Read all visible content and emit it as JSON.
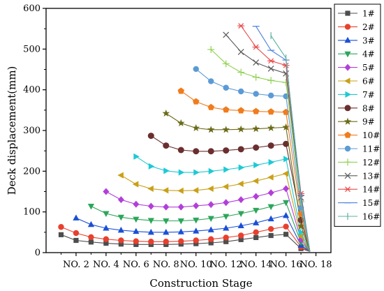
{
  "chart_data": {
    "type": "line",
    "xlabel": "Construction Stage",
    "ylabel": "Deck displacement(mm)",
    "xlim": [
      0,
      19
    ],
    "ylim": [
      0,
      600
    ],
    "xticks": [
      {
        "value": 2,
        "label": "NO. 2"
      },
      {
        "value": 4,
        "label": "NO. 4"
      },
      {
        "value": 6,
        "label": "NO. 6"
      },
      {
        "value": 8,
        "label": "NO. 8"
      },
      {
        "value": 10,
        "label": "NO. 10"
      },
      {
        "value": 12,
        "label": "NO. 12"
      },
      {
        "value": 14,
        "label": "NO. 14"
      },
      {
        "value": 16,
        "label": "NO. 16"
      },
      {
        "value": 18,
        "label": "NO. 18"
      }
    ],
    "yticks": [
      0,
      100,
      200,
      300,
      400,
      500,
      600
    ],
    "legend_position": "right",
    "series": [
      {
        "name": "1#",
        "color": "#4d4d4d",
        "marker": "square",
        "points": [
          [
            1,
            44
          ],
          [
            2,
            30
          ],
          [
            3,
            26
          ],
          [
            4,
            23
          ],
          [
            5,
            21
          ],
          [
            6,
            20
          ],
          [
            7,
            20
          ],
          [
            8,
            20
          ],
          [
            9,
            21
          ],
          [
            10,
            22
          ],
          [
            11,
            24
          ],
          [
            12,
            27
          ],
          [
            13,
            32
          ],
          [
            14,
            37
          ],
          [
            15,
            42
          ],
          [
            16,
            45
          ],
          [
            17,
            10
          ],
          [
            17.6,
            3
          ]
        ]
      },
      {
        "name": "2#",
        "color": "#e8402e",
        "marker": "circle",
        "points": [
          [
            1,
            63
          ],
          [
            2,
            48
          ],
          [
            3,
            38
          ],
          [
            4,
            33
          ],
          [
            5,
            30
          ],
          [
            6,
            28
          ],
          [
            7,
            27
          ],
          [
            8,
            27
          ],
          [
            9,
            28
          ],
          [
            10,
            30
          ],
          [
            11,
            33
          ],
          [
            12,
            37
          ],
          [
            13,
            42
          ],
          [
            14,
            50
          ],
          [
            15,
            58
          ],
          [
            16,
            64
          ],
          [
            17,
            14
          ],
          [
            17.6,
            3
          ]
        ]
      },
      {
        "name": "3#",
        "color": "#1a4fd6",
        "marker": "triangle-up",
        "points": [
          [
            2,
            85
          ],
          [
            3,
            69
          ],
          [
            4,
            60
          ],
          [
            5,
            55
          ],
          [
            6,
            52
          ],
          [
            7,
            50
          ],
          [
            8,
            50
          ],
          [
            9,
            51
          ],
          [
            10,
            53
          ],
          [
            11,
            56
          ],
          [
            12,
            60
          ],
          [
            13,
            66
          ],
          [
            14,
            73
          ],
          [
            15,
            83
          ],
          [
            16,
            91
          ],
          [
            17,
            18
          ],
          [
            17.6,
            3
          ]
        ]
      },
      {
        "name": "4#",
        "color": "#2ca65a",
        "marker": "triangle-down",
        "points": [
          [
            3,
            114
          ],
          [
            4,
            96
          ],
          [
            5,
            87
          ],
          [
            6,
            82
          ],
          [
            7,
            79
          ],
          [
            8,
            78
          ],
          [
            9,
            78
          ],
          [
            10,
            80
          ],
          [
            11,
            84
          ],
          [
            12,
            89
          ],
          [
            13,
            96
          ],
          [
            14,
            104
          ],
          [
            15,
            113
          ],
          [
            16,
            123
          ],
          [
            17,
            25
          ],
          [
            17.6,
            3
          ]
        ]
      },
      {
        "name": "5#",
        "color": "#b23fd9",
        "marker": "diamond",
        "points": [
          [
            4,
            150
          ],
          [
            5,
            130
          ],
          [
            6,
            119
          ],
          [
            7,
            114
          ],
          [
            8,
            112
          ],
          [
            9,
            112
          ],
          [
            10,
            115
          ],
          [
            11,
            118
          ],
          [
            12,
            123
          ],
          [
            13,
            130
          ],
          [
            14,
            138
          ],
          [
            15,
            147
          ],
          [
            16,
            157
          ],
          [
            17,
            32
          ],
          [
            17.6,
            3
          ]
        ]
      },
      {
        "name": "6#",
        "color": "#c9a019",
        "marker": "triangle-left",
        "points": [
          [
            5,
            190
          ],
          [
            6,
            168
          ],
          [
            7,
            157
          ],
          [
            8,
            153
          ],
          [
            9,
            152
          ],
          [
            10,
            153
          ],
          [
            11,
            157
          ],
          [
            12,
            162
          ],
          [
            13,
            169
          ],
          [
            14,
            176
          ],
          [
            15,
            185
          ],
          [
            16,
            194
          ],
          [
            17,
            40
          ],
          [
            17.6,
            3
          ]
        ]
      },
      {
        "name": "7#",
        "color": "#1ec9d3",
        "marker": "triangle-right",
        "points": [
          [
            6,
            236
          ],
          [
            7,
            212
          ],
          [
            8,
            201
          ],
          [
            9,
            197
          ],
          [
            10,
            197
          ],
          [
            11,
            200
          ],
          [
            12,
            204
          ],
          [
            13,
            209
          ],
          [
            14,
            215
          ],
          [
            15,
            222
          ],
          [
            16,
            230
          ],
          [
            17,
            50
          ],
          [
            17.6,
            3
          ]
        ]
      },
      {
        "name": "8#",
        "color": "#6b2e2e",
        "marker": "hexagon",
        "points": [
          [
            7,
            287
          ],
          [
            8,
            263
          ],
          [
            9,
            252
          ],
          [
            10,
            249
          ],
          [
            11,
            249
          ],
          [
            12,
            251
          ],
          [
            13,
            254
          ],
          [
            14,
            258
          ],
          [
            15,
            263
          ],
          [
            16,
            267
          ],
          [
            17,
            80
          ],
          [
            17.6,
            3
          ]
        ]
      },
      {
        "name": "9#",
        "color": "#6b6b1a",
        "marker": "star",
        "points": [
          [
            8,
            342
          ],
          [
            9,
            318
          ],
          [
            10,
            306
          ],
          [
            11,
            302
          ],
          [
            12,
            302
          ],
          [
            13,
            303
          ],
          [
            14,
            304
          ],
          [
            15,
            306
          ],
          [
            16,
            308
          ],
          [
            17,
            65
          ],
          [
            17.6,
            3
          ]
        ]
      },
      {
        "name": "10#",
        "color": "#f07c1e",
        "marker": "pentagon",
        "points": [
          [
            9,
            397
          ],
          [
            10,
            371
          ],
          [
            11,
            357
          ],
          [
            12,
            351
          ],
          [
            13,
            349
          ],
          [
            14,
            347
          ],
          [
            15,
            346
          ],
          [
            16,
            345
          ],
          [
            17,
            95
          ],
          [
            17.6,
            3
          ]
        ]
      },
      {
        "name": "11#",
        "color": "#5b9bd5",
        "marker": "filled-circle",
        "points": [
          [
            10,
            451
          ],
          [
            11,
            421
          ],
          [
            12,
            405
          ],
          [
            13,
            396
          ],
          [
            14,
            390
          ],
          [
            15,
            386
          ],
          [
            16,
            384
          ],
          [
            17,
            110
          ],
          [
            17.6,
            3
          ]
        ]
      },
      {
        "name": "12#",
        "color": "#8fd14f",
        "marker": "plus",
        "points": [
          [
            11,
            499
          ],
          [
            12,
            464
          ],
          [
            13,
            443
          ],
          [
            14,
            431
          ],
          [
            15,
            423
          ],
          [
            16,
            418
          ],
          [
            17,
            125
          ],
          [
            17.6,
            3
          ]
        ]
      },
      {
        "name": "13#",
        "color": "#5a5a5a",
        "marker": "x",
        "points": [
          [
            12,
            535
          ],
          [
            13,
            493
          ],
          [
            14,
            467
          ],
          [
            15,
            452
          ],
          [
            16,
            440
          ],
          [
            17,
            135
          ],
          [
            17.6,
            3
          ]
        ]
      },
      {
        "name": "14#",
        "color": "#e84a4a",
        "marker": "asterisk",
        "points": [
          [
            13,
            557
          ],
          [
            14,
            505
          ],
          [
            15,
            471
          ],
          [
            16,
            460
          ],
          [
            17,
            145
          ],
          [
            17.6,
            3
          ]
        ]
      },
      {
        "name": "15#",
        "color": "#4a7fe0",
        "marker": "dash",
        "points": [
          [
            14,
            556
          ],
          [
            15,
            497
          ],
          [
            16,
            473
          ],
          [
            17,
            140
          ],
          [
            17.6,
            3
          ]
        ]
      },
      {
        "name": "16#",
        "color": "#5ab0a0",
        "marker": "vbar",
        "points": [
          [
            15,
            533
          ],
          [
            16,
            478
          ],
          [
            17,
            130
          ],
          [
            17.6,
            3
          ]
        ]
      }
    ]
  }
}
